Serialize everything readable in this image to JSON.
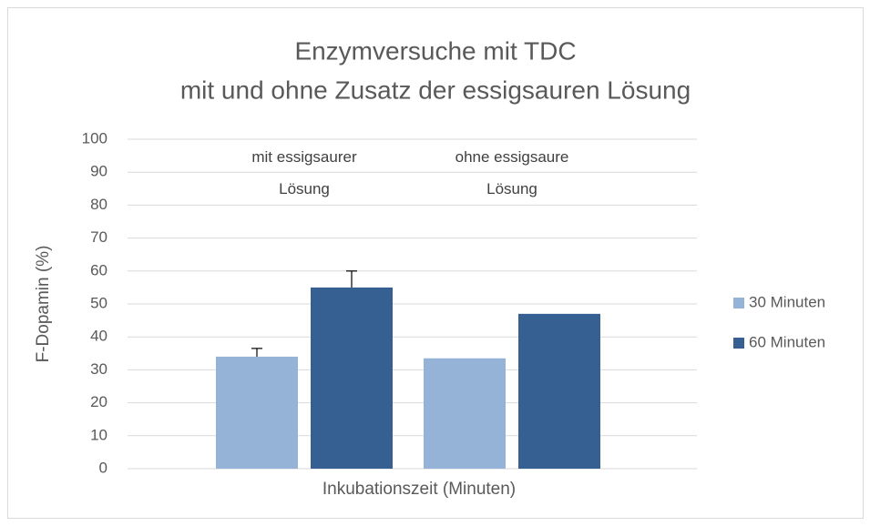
{
  "chart_data": {
    "type": "bar",
    "title": [
      "Enzymversuche mit TDC",
      "mit und ohne Zusatz der essigsauren Lösung"
    ],
    "categories": [
      "mit essigsaurer Lösung",
      "ohne essigsaure Lösung"
    ],
    "x_label": "Inkubationszeit (Minuten)",
    "y_label": "F-Dopamin (%)",
    "series": [
      {
        "name": "30 Minuten",
        "color": "#95b3d7",
        "values": [
          34,
          33.5
        ],
        "errors": [
          2.5,
          null
        ]
      },
      {
        "name": "60 Minuten",
        "color": "#366092",
        "values": [
          55,
          47
        ],
        "errors": [
          5,
          null
        ]
      }
    ],
    "ylim": [
      0,
      100
    ],
    "yticks": [
      0,
      10,
      20,
      30,
      40,
      50,
      60,
      70,
      80,
      90,
      100
    ],
    "grid": true,
    "legend": "right"
  }
}
